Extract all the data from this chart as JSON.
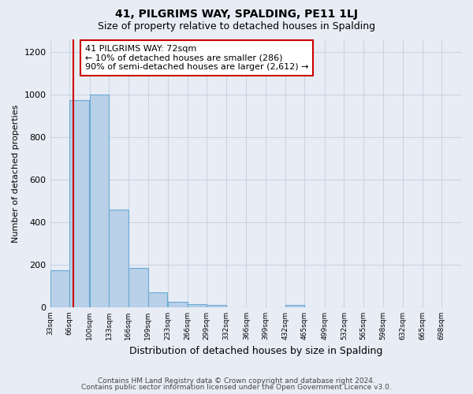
{
  "title": "41, PILGRIMS WAY, SPALDING, PE11 1LJ",
  "subtitle": "Size of property relative to detached houses in Spalding",
  "xlabel": "Distribution of detached houses by size in Spalding",
  "ylabel": "Number of detached properties",
  "bar_edges": [
    33,
    66,
    100,
    133,
    166,
    199,
    233,
    266,
    299,
    332,
    366,
    399,
    432,
    465,
    499,
    532,
    565,
    598,
    632,
    665,
    698
  ],
  "bar_heights": [
    175,
    975,
    1000,
    460,
    185,
    70,
    25,
    15,
    10,
    0,
    0,
    0,
    10,
    0,
    0,
    0,
    0,
    0,
    0,
    0
  ],
  "bar_color": "#b8d0e8",
  "bar_edge_color": "#6aaad4",
  "property_size": 72,
  "vline_color": "#cc0000",
  "annotation_line1": "41 PILGRIMS WAY: 72sqm",
  "annotation_line2": "← 10% of detached houses are smaller (286)",
  "annotation_line3": "90% of semi-detached houses are larger (2,612) →",
  "annotation_box_color": "#ffffff",
  "annotation_box_edge": "#cc0000",
  "ylim": [
    0,
    1260
  ],
  "yticks": [
    0,
    200,
    400,
    600,
    800,
    1000,
    1200
  ],
  "grid_color": "#c8d4e4",
  "background_color": "#e8edf5",
  "footer_line1": "Contains HM Land Registry data © Crown copyright and database right 2024.",
  "footer_line2": "Contains public sector information licensed under the Open Government Licence v3.0."
}
